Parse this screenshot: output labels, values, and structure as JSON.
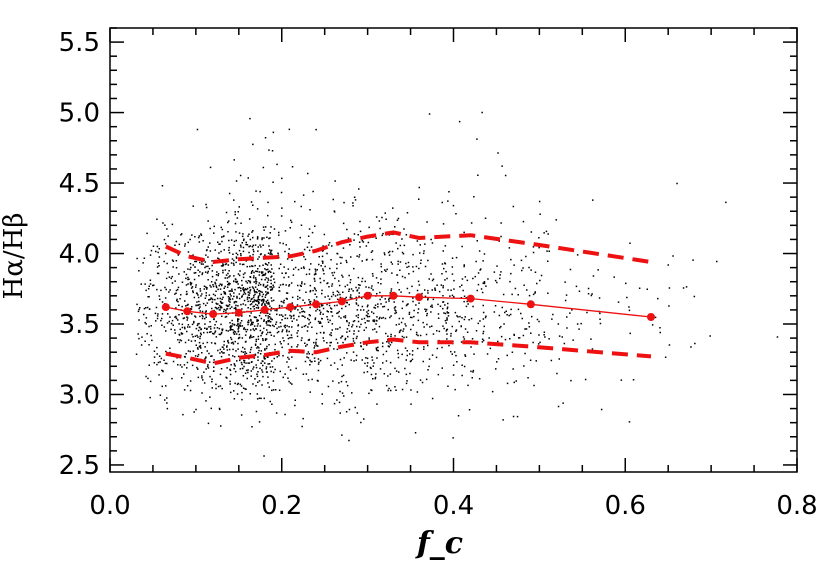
{
  "chart_data": {
    "type": "scatter",
    "title": "",
    "xlabel": "f_c",
    "ylabel": "Hα/Hβ",
    "xlim": [
      0.0,
      0.8
    ],
    "ylim": [
      2.45,
      5.6
    ],
    "x_ticks": [
      0.0,
      0.2,
      0.4,
      0.6,
      0.8
    ],
    "x_tick_labels": [
      "0.0",
      "0.2",
      "0.4",
      "0.6",
      "0.8"
    ],
    "y_ticks": [
      2.5,
      3.0,
      3.5,
      4.0,
      4.5,
      5.0,
      5.5
    ],
    "y_tick_labels": [
      "2.5",
      "3.0",
      "3.5",
      "4.0",
      "4.5",
      "5.0",
      "5.5"
    ],
    "grid": false,
    "colors": {
      "points": "#000000",
      "curves": "#ee1111"
    },
    "scatter_cloud": {
      "count": 6500,
      "x_range": [
        0.03,
        0.8
      ],
      "y_center": 3.6,
      "y_range": [
        2.5,
        5.5
      ]
    },
    "series": [
      {
        "role": "median",
        "style": "solid-with-markers",
        "x": [
          0.065,
          0.09,
          0.12,
          0.15,
          0.18,
          0.21,
          0.24,
          0.27,
          0.3,
          0.33,
          0.36,
          0.42,
          0.49,
          0.63
        ],
        "y": [
          3.62,
          3.59,
          3.57,
          3.58,
          3.6,
          3.62,
          3.64,
          3.66,
          3.7,
          3.7,
          3.69,
          3.68,
          3.64,
          3.55
        ]
      },
      {
        "role": "upper-percentile",
        "style": "dashed",
        "x": [
          0.065,
          0.09,
          0.12,
          0.15,
          0.18,
          0.21,
          0.24,
          0.27,
          0.3,
          0.33,
          0.36,
          0.42,
          0.49,
          0.63
        ],
        "y": [
          4.05,
          3.98,
          3.94,
          3.96,
          3.97,
          3.98,
          4.02,
          4.08,
          4.12,
          4.15,
          4.11,
          4.13,
          4.07,
          3.94
        ]
      },
      {
        "role": "lower-percentile",
        "style": "dashed",
        "x": [
          0.065,
          0.09,
          0.12,
          0.15,
          0.18,
          0.21,
          0.24,
          0.27,
          0.3,
          0.33,
          0.36,
          0.42,
          0.49,
          0.63
        ],
        "y": [
          3.29,
          3.26,
          3.22,
          3.26,
          3.28,
          3.31,
          3.3,
          3.34,
          3.37,
          3.39,
          3.37,
          3.37,
          3.34,
          3.27
        ]
      }
    ]
  }
}
